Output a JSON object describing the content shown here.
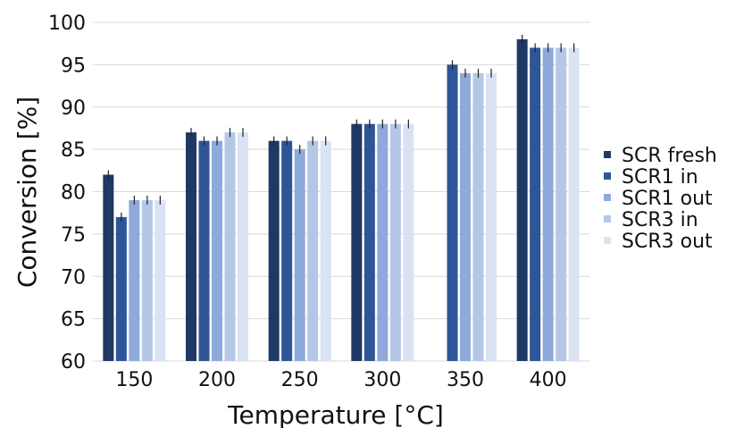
{
  "chart_data": {
    "type": "bar",
    "title": "",
    "xlabel": "Temperature [°C]",
    "ylabel": "Conversion [%]",
    "categories": [
      "150",
      "200",
      "250",
      "300",
      "350",
      "400"
    ],
    "ylim": [
      60,
      100
    ],
    "yticks": [
      60,
      65,
      70,
      75,
      80,
      85,
      90,
      95,
      100
    ],
    "grid": true,
    "legend_position": "right",
    "series": [
      {
        "name": "SCR fresh",
        "color": "#1f3864",
        "values": [
          82,
          87,
          86,
          88,
          null,
          98
        ]
      },
      {
        "name": "SCR1 in",
        "color": "#2e5597",
        "values": [
          77,
          86,
          86,
          88,
          95,
          97
        ]
      },
      {
        "name": "SCR1 out",
        "color": "#8eaadb",
        "values": [
          79,
          86,
          85,
          88,
          94,
          97
        ]
      },
      {
        "name": "SCR3 in",
        "color": "#b4c7e7",
        "values": [
          79,
          87,
          86,
          88,
          94,
          97
        ]
      },
      {
        "name": "SCR3 out",
        "color": "#dae3f3",
        "values": [
          79,
          87,
          86,
          88,
          94,
          97
        ]
      }
    ]
  }
}
